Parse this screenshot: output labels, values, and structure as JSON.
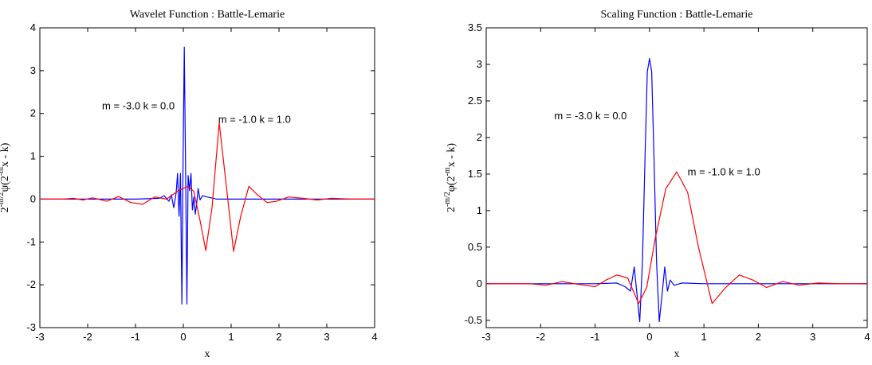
{
  "chart_data": [
    {
      "type": "line",
      "title": "Wavelet Function : Battle-Lemarie",
      "xlabel": "x",
      "ylabel": {
        "prefix": "2",
        "sup1": "-m/2",
        "mid": "ψ(2",
        "sup2": "-m",
        "suffix": "x - k)"
      },
      "xlim": [
        -3,
        4
      ],
      "ylim": [
        -3,
        4
      ],
      "xticks": [
        "-3",
        "-2",
        "-1",
        "0",
        "1",
        "2",
        "3",
        "4"
      ],
      "yticks": [
        "-3",
        "-2",
        "-1",
        "0",
        "1",
        "2",
        "3",
        "4"
      ],
      "grid": false,
      "annotations": [
        {
          "text": "m = -3.0 k = 0.0",
          "x": -1.7,
          "y": 2.1
        },
        {
          "text": "m = -1.0 k = 1.0",
          "x": 0.73,
          "y": 1.78
        }
      ],
      "series": [
        {
          "color": "#0000ff",
          "x": [
            -3,
            -2,
            -1,
            -0.5,
            -0.4,
            -0.3,
            -0.25,
            -0.2,
            -0.15,
            -0.12,
            -0.09,
            -0.06,
            -0.03,
            -0.01,
            0.02,
            0.05,
            0.075,
            0.1,
            0.13,
            0.16,
            0.19,
            0.22,
            0.25,
            0.28,
            0.31,
            0.35,
            0.4,
            0.5,
            0.7,
            1,
            2,
            3,
            4
          ],
          "y": [
            0,
            0,
            0,
            0.02,
            0.08,
            -0.05,
            0.1,
            -0.2,
            0.15,
            0.6,
            -0.4,
            0.6,
            -2.45,
            0.4,
            3.55,
            0.4,
            -2.45,
            0.55,
            0.2,
            0.6,
            -0.25,
            0.05,
            -0.35,
            -0.1,
            0.25,
            -0.02,
            0.08,
            0.05,
            0,
            0,
            0,
            0,
            0
          ]
        },
        {
          "color": "#ff0000",
          "x": [
            -3,
            -2.5,
            -2.3,
            -2.1,
            -1.9,
            -1.6,
            -1.35,
            -1.1,
            -0.85,
            -0.6,
            -0.35,
            -0.1,
            0.1,
            0.22,
            0.35,
            0.47,
            0.6,
            0.75,
            0.9,
            1.05,
            1.2,
            1.37,
            1.55,
            1.75,
            1.95,
            2.2,
            2.5,
            2.8,
            3.1,
            3.5,
            4
          ],
          "y": [
            0,
            0,
            0.02,
            -0.02,
            0.03,
            -0.05,
            0.06,
            -0.08,
            -0.12,
            0.05,
            0,
            0.2,
            0.3,
            0.18,
            -0.5,
            -1.2,
            -0.2,
            1.78,
            0.3,
            -1.22,
            -0.4,
            0.3,
            0.1,
            -0.08,
            -0.05,
            0.05,
            0.02,
            -0.02,
            0.02,
            0,
            0
          ]
        }
      ]
    },
    {
      "type": "line",
      "title": "Scaling Function : Battle-Lemarie",
      "xlabel": "x",
      "ylabel": {
        "prefix": "2",
        "sup1": "-m/2",
        "mid": "φ(2",
        "sup2": "-m",
        "suffix": "x - k)"
      },
      "xlim": [
        -3,
        4
      ],
      "ylim": [
        -0.6,
        3.5
      ],
      "xticks": [
        "-3",
        "-2",
        "-1",
        "0",
        "1",
        "2",
        "3",
        "4"
      ],
      "yticks": [
        "-0.5",
        "0",
        "0.5",
        "1",
        "1.5",
        "2",
        "2.5",
        "3",
        "3.5"
      ],
      "grid": false,
      "annotations": [
        {
          "text": "m = -3.0 k = 0.0",
          "x": -1.75,
          "y": 2.25
        },
        {
          "text": "m = -1.0 k = 1.0",
          "x": 0.7,
          "y": 1.48
        }
      ],
      "series": [
        {
          "color": "#0000ff",
          "x": [
            -3,
            -1,
            -0.6,
            -0.45,
            -0.35,
            -0.28,
            -0.23,
            -0.18,
            -0.13,
            -0.08,
            -0.04,
            0,
            0.04,
            0.08,
            0.13,
            0.18,
            0.23,
            0.28,
            0.33,
            0.38,
            0.45,
            0.6,
            1,
            4
          ],
          "y": [
            0,
            0,
            0.01,
            -0.04,
            -0.1,
            0.23,
            -0.15,
            -0.52,
            0.3,
            1.8,
            2.9,
            3.08,
            2.9,
            1.8,
            0.3,
            -0.52,
            -0.15,
            0.23,
            -0.1,
            0.05,
            -0.02,
            0.01,
            0,
            0
          ]
        },
        {
          "color": "#ff0000",
          "x": [
            -3,
            -2.2,
            -1.9,
            -1.6,
            -1.3,
            -1,
            -0.8,
            -0.6,
            -0.4,
            -0.2,
            -0.05,
            0.1,
            0.3,
            0.5,
            0.7,
            0.9,
            1.15,
            1.4,
            1.65,
            1.9,
            2.15,
            2.45,
            2.75,
            3.1,
            3.5,
            4
          ],
          "y": [
            0,
            0,
            -0.02,
            0.03,
            -0.01,
            -0.04,
            0.05,
            0.12,
            0.08,
            -0.27,
            -0.05,
            0.6,
            1.3,
            1.53,
            1.25,
            0.5,
            -0.27,
            -0.05,
            0.12,
            0.05,
            -0.05,
            0.03,
            -0.02,
            0.01,
            0,
            0
          ]
        }
      ]
    }
  ]
}
